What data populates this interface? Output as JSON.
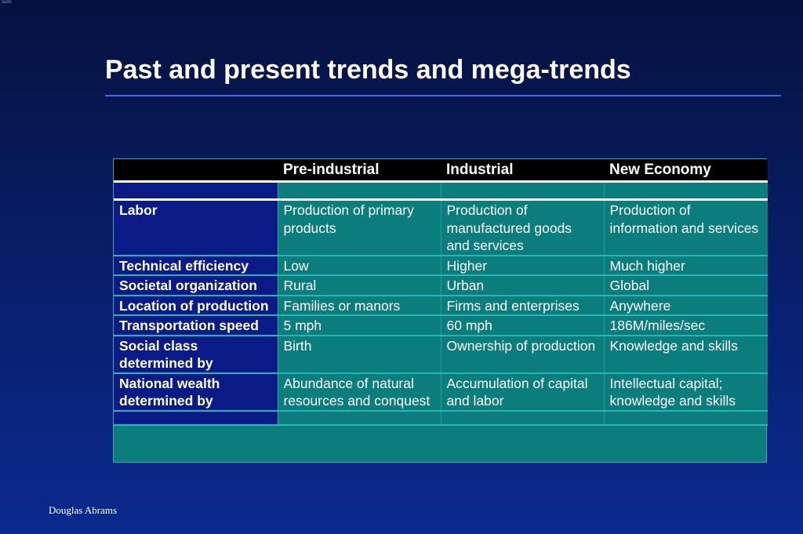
{
  "slide": {
    "corner_mark": "sumi",
    "title": "Past and present trends and mega-trends",
    "footer": "Douglas Abrams"
  },
  "table": {
    "headers": [
      "",
      "Pre-industrial",
      "Industrial",
      "New Economy"
    ],
    "rows": [
      {
        "label": "Labor",
        "cells": [
          "Production of primary products",
          "Production of manufactured goods and services",
          "Production of information and services"
        ]
      },
      {
        "label": "Technical efficiency",
        "cells": [
          "Low",
          "Higher",
          "Much higher"
        ]
      },
      {
        "label": "Societal organization",
        "cells": [
          "Rural",
          "Urban",
          "Global"
        ]
      },
      {
        "label": "Location of production",
        "cells": [
          "Families or manors",
          "Firms and enterprises",
          "Anywhere"
        ]
      },
      {
        "label": "Transportation speed",
        "cells": [
          "5 mph",
          "60 mph",
          "186M/miles/sec"
        ]
      },
      {
        "label": "Social class determined by",
        "cells": [
          "Birth",
          "Ownership of production",
          "Knowledge and skills"
        ]
      },
      {
        "label": "National wealth determined by",
        "cells": [
          "Abundance of natural resources and conquest",
          "Accumulation of capital and labor",
          "Intellectual capital; knowledge and skills"
        ]
      }
    ]
  },
  "colors": {
    "background_top": "#05123f",
    "background_bottom": "#0a2a8f",
    "title_rule": "#3a68e6",
    "label_column": "#0a1a86",
    "value_cells": "#0b7d7d",
    "header_row": "#000000",
    "text": "#ffffff"
  }
}
